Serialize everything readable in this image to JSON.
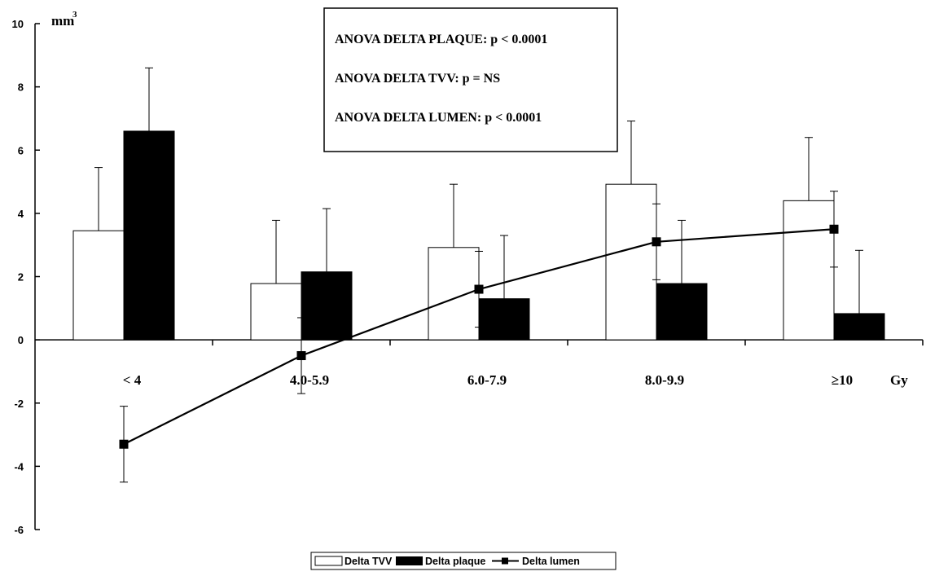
{
  "chart_data": {
    "type": "bar",
    "categories": [
      "< 4",
      "4.0-5.9",
      "6.0-7.9",
      "8.0-9.9",
      "≥10"
    ],
    "y_unit_label": "mm",
    "y_unit_exponent": "3",
    "x_unit_label": "Gy",
    "ylim": [
      -6,
      10
    ],
    "y_ticks": [
      -6,
      -4,
      -2,
      0,
      2,
      4,
      6,
      8,
      10
    ],
    "grid": false,
    "legend_position": "bottom-center",
    "series": [
      {
        "name": "Delta TVV",
        "kind": "bar",
        "fill": "#ffffff",
        "values": [
          3.45,
          1.78,
          2.92,
          4.92,
          4.4
        ],
        "err": [
          2.0,
          2.0,
          2.0,
          2.0,
          2.0
        ]
      },
      {
        "name": "Delta plaque",
        "kind": "bar",
        "fill": "#000000",
        "values": [
          6.6,
          2.15,
          1.3,
          1.78,
          0.83
        ],
        "err": [
          2.0,
          2.0,
          2.0,
          2.0,
          2.0
        ]
      },
      {
        "name": "Delta lumen",
        "kind": "line",
        "color": "#000000",
        "values": [
          -3.3,
          -0.5,
          1.6,
          3.1,
          3.5
        ],
        "err": [
          1.2,
          1.2,
          1.2,
          1.2,
          1.2
        ]
      }
    ],
    "annotations": [
      "ANOVA DELTA PLAQUE:  p < 0.0001",
      "ANOVA DELTA TVV:  p = NS",
      "ANOVA DELTA LUMEN: p < 0.0001"
    ]
  }
}
